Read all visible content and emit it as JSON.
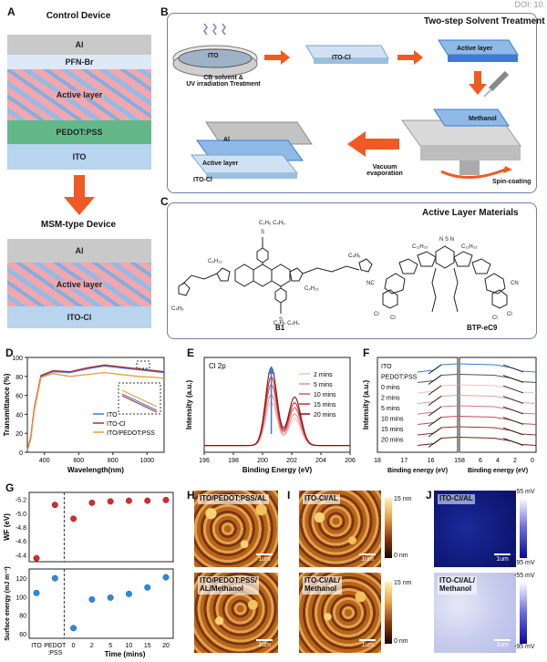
{
  "doi": "DOI: 10.",
  "panels": {
    "a": "A",
    "b": "B",
    "c": "C",
    "d": "D",
    "e": "E",
    "f": "F",
    "g": "G",
    "h": "H",
    "i": "I",
    "j": "J"
  },
  "panel_a": {
    "control_title": "Control Device",
    "control_layers": [
      "Al",
      "PFN-Br",
      "Active layer",
      "PEDOT:PSS",
      "ITO"
    ],
    "msm_title": "MSM-type Device",
    "msm_layers": [
      "Al",
      "Active layer",
      "ITO-Cl"
    ]
  },
  "panel_b": {
    "title": "Two-step Solvent Treatment",
    "ito": "ITO",
    "cb_treatment": "CB solvent &\nUV irradiation Treatment",
    "ito_cl": "ITO-Cl",
    "active_layer": "Active layer",
    "methanol": "Methanol",
    "spin_coating": "Spin-coating",
    "vacuum": "Vacuum\nevaporation",
    "stack_al": "Al",
    "stack_active": "Active layer",
    "stack_itocl": "ITO-Cl"
  },
  "panel_c": {
    "title": "Active Layer Materials",
    "b1": "B1",
    "btp": "BTP-eC9"
  },
  "colors": {
    "blue": "#3b7bd6",
    "red": "#c0262b",
    "orange": "#e89a3a",
    "accent": "#f05a22",
    "pink": "#f0a0a8",
    "lightblue": "#8fb9e6"
  },
  "chart_data": [
    {
      "id": "D",
      "type": "line",
      "ylabel": "Transmittance (%)",
      "xlabel": "Wavelength(nm)",
      "xlim": [
        300,
        1100
      ],
      "ylim": [
        0,
        100
      ],
      "xticks": [
        "400",
        "600",
        "800",
        "1000"
      ],
      "yticks": [
        "0",
        "20",
        "40",
        "60",
        "80",
        "100"
      ],
      "series": [
        {
          "name": "ITO",
          "color": "#3b7bd6",
          "x": [
            300,
            320,
            340,
            380,
            450,
            550,
            650,
            750,
            850,
            950,
            1050,
            1100
          ],
          "y": [
            2,
            15,
            45,
            80,
            85,
            84,
            88,
            91,
            89,
            87,
            85,
            84
          ]
        },
        {
          "name": "ITO-Cl",
          "color": "#c0262b",
          "x": [
            300,
            320,
            340,
            380,
            450,
            550,
            650,
            750,
            850,
            950,
            1050,
            1100
          ],
          "y": [
            2,
            16,
            46,
            81,
            86,
            85,
            89,
            92,
            90,
            88,
            86,
            85
          ]
        },
        {
          "name": "ITO/PEDOT:PSS",
          "color": "#e89a3a",
          "x": [
            300,
            320,
            340,
            380,
            450,
            550,
            650,
            750,
            850,
            950,
            1050,
            1100
          ],
          "y": [
            2,
            14,
            44,
            79,
            83,
            80,
            82,
            84,
            82,
            80,
            79,
            78
          ]
        }
      ]
    },
    {
      "id": "E",
      "type": "line",
      "title": "Cl 2p",
      "ylabel": "Intensity (a.u.)",
      "xlabel": "Binding Energy (eV)",
      "xlim": [
        196,
        206
      ],
      "xticks": [
        "196",
        "198",
        "200",
        "202",
        "204",
        "206"
      ],
      "series": [
        {
          "name": "2 mins",
          "color": "#f3c0c0",
          "peak": 200.6,
          "height": 0.55
        },
        {
          "name": "5 mins",
          "color": "#e89090",
          "peak": 200.6,
          "height": 0.65
        },
        {
          "name": "10 mins",
          "color": "#d85a5a",
          "peak": 200.6,
          "height": 0.78
        },
        {
          "name": "15 mins",
          "color": "#c03030",
          "peak": 200.6,
          "height": 0.88
        },
        {
          "name": "20 mins",
          "color": "#8a1010",
          "peak": 200.6,
          "height": 1.0
        }
      ]
    },
    {
      "id": "F",
      "type": "line",
      "ylabel": "Intensity (a.u.)",
      "xlabel_left": "Binding energy (eV)",
      "xlabel_right": "Binding energy (eV)",
      "xticks_left": [
        "18",
        "17",
        "16",
        "15"
      ],
      "xticks_right": [
        "8",
        "6",
        "4",
        "2",
        "0"
      ],
      "series_labels": [
        "ITO",
        "PEDOT:PSS",
        "0 mins",
        "2 mins",
        "5 mins",
        "10 mins",
        "15 mins",
        "20 mins"
      ]
    },
    {
      "id": "G",
      "type": "scatter",
      "ylabel_top": "WF (eV)",
      "ylabel_bottom": "Surface energy (mJ m⁻²)",
      "xlabel": "Time (mins)",
      "xticks": [
        "ITO",
        "PEDOT\n:PSS",
        "0",
        "2",
        "5",
        "10",
        "15",
        "20"
      ],
      "yticks_top": [
        "-5.2",
        "-5.0",
        "-4.8",
        "-4.6",
        "-4.4"
      ],
      "yticks_bottom": [
        "60",
        "80",
        "100",
        "120"
      ],
      "wf": [
        -4.35,
        -5.12,
        -4.92,
        -5.15,
        -5.17,
        -5.18,
        -5.18,
        -5.19
      ],
      "surface_energy": [
        104,
        120,
        66,
        97,
        99,
        103,
        110,
        121
      ]
    }
  ],
  "panel_h": {
    "top": "ITO/PEDOT:PSS/AL",
    "bottom": "ITO/PEDOT:PSS/\nAL/Methanol",
    "scale": "1um"
  },
  "panel_i": {
    "top": "ITO-Cl/AL",
    "bottom": "ITO-Cl/AL/\nMethanol",
    "scale": "1um",
    "cbar_top_max": "15 nm",
    "cbar_top_min": "0 nm",
    "cbar_bottom_max": "15 nm",
    "cbar_bottom_min": "0 nm"
  },
  "panel_j": {
    "top": "ITO-Cl/AL",
    "bottom": "ITO-Cl/AL/\nMethanol",
    "scale": "1um",
    "cbar_top_max": "-55 mV",
    "cbar_top_min": "-95 mV",
    "cbar_bottom_max": "-55 mV",
    "cbar_bottom_min": "-95 mV"
  }
}
